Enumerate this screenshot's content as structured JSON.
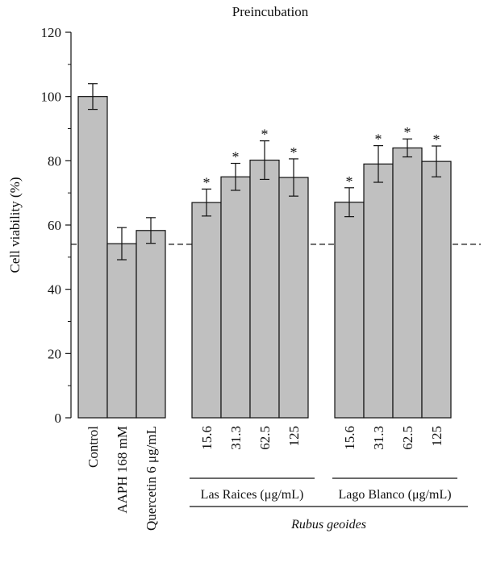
{
  "chart_data": {
    "type": "bar",
    "title": "Preincubation",
    "ylabel": "Cell viability (%)",
    "ylim": [
      0,
      120
    ],
    "yticks": [
      0,
      20,
      40,
      60,
      80,
      100,
      120
    ],
    "grid": false,
    "bar_color": "#c0c0c0",
    "reference_line": {
      "y": 54,
      "style": "dashed"
    },
    "bars": [
      {
        "label": "Control",
        "value": 100,
        "error": 4,
        "significant": false
      },
      {
        "label": "AAPH 168 mM",
        "value": 54.2,
        "error": 5,
        "significant": false
      },
      {
        "label": "Quercetin 6 μg/mL",
        "value": 58.3,
        "error": 4,
        "significant": false
      },
      {
        "label": "15.6",
        "value": 67,
        "error": 4.2,
        "significant": true
      },
      {
        "label": "31.3",
        "value": 75,
        "error": 4.2,
        "significant": true
      },
      {
        "label": "62.5",
        "value": 80.2,
        "error": 6,
        "significant": true
      },
      {
        "label": "125",
        "value": 74.8,
        "error": 5.8,
        "significant": true
      },
      {
        "label": "15.6",
        "value": 67.1,
        "error": 4.5,
        "significant": true
      },
      {
        "label": "31.3",
        "value": 79,
        "error": 5.7,
        "significant": true
      },
      {
        "label": "62.5",
        "value": 84,
        "error": 2.8,
        "significant": true
      },
      {
        "label": "125",
        "value": 79.8,
        "error": 4.8,
        "significant": true
      }
    ],
    "significance_marker": "*",
    "groups": [
      {
        "label": "Las Raices (μg/mL)",
        "bars": [
          3,
          6
        ]
      },
      {
        "label": "Lago Blanco (μg/mL)",
        "bars": [
          7,
          10
        ]
      }
    ],
    "supergroup": {
      "label": "Rubus geoides",
      "groups": [
        0,
        1
      ]
    }
  }
}
